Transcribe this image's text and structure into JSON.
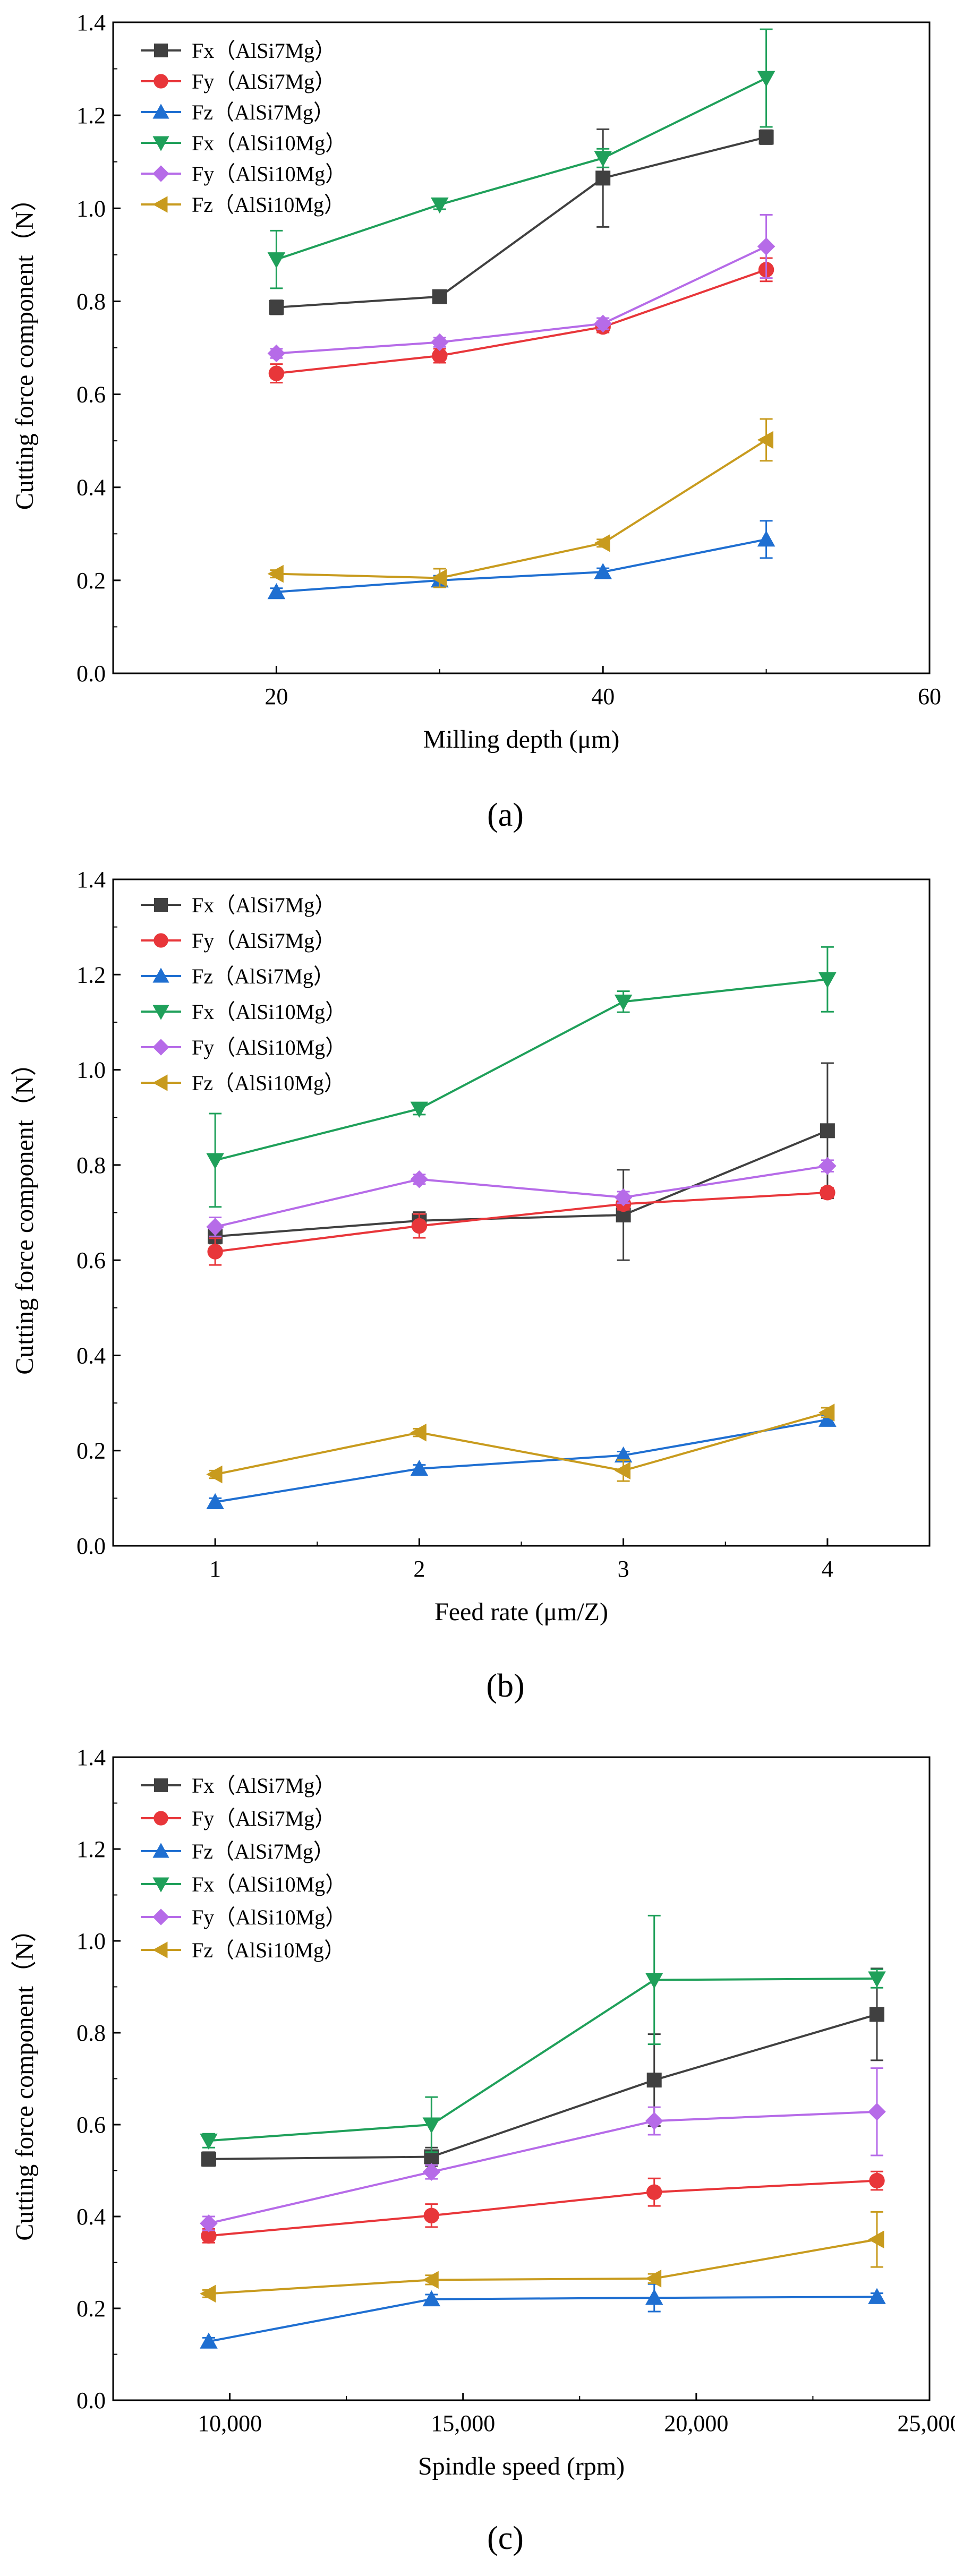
{
  "chart_data": [
    {
      "type": "line",
      "panel_label": "(a)",
      "xlabel": "Milling depth (μm)",
      "ylabel": "Cutting force component（N）",
      "xlim": [
        10,
        60
      ],
      "ylim": [
        0,
        1.4
      ],
      "x_ticks": [
        20,
        40,
        60
      ],
      "x_tick_labels": [
        "20",
        "40",
        "60"
      ],
      "y_ticks": [
        0,
        0.2,
        0.4,
        0.6,
        0.8,
        1.0,
        1.2,
        1.4
      ],
      "y_tick_labels": [
        "0.0",
        "0.2",
        "0.4",
        "0.6",
        "0.8",
        "1.0",
        "1.2",
        "1.4"
      ],
      "x": [
        20,
        30,
        40,
        50
      ],
      "series": [
        {
          "name": "Fx（AlSi7Mg）",
          "color": "#404040",
          "marker": "square",
          "values": [
            0.787,
            0.81,
            1.065,
            1.153
          ],
          "errors": [
            0.015,
            0.01,
            0.105,
            0.015
          ]
        },
        {
          "name": "Fy（AlSi7Mg）",
          "color": "#e8363a",
          "marker": "circle",
          "values": [
            0.645,
            0.683,
            0.745,
            0.868
          ],
          "errors": [
            0.02,
            0.015,
            0.012,
            0.025
          ]
        },
        {
          "name": "Fz（AlSi7Mg）",
          "color": "#1f6fd1",
          "marker": "triangle-up",
          "values": [
            0.175,
            0.2,
            0.218,
            0.288
          ],
          "errors": [
            0.008,
            0.01,
            0.008,
            0.04
          ]
        },
        {
          "name": "Fx（AlSi10Mg）",
          "color": "#1fa05a",
          "marker": "triangle-down",
          "values": [
            0.89,
            1.008,
            1.108,
            1.28
          ],
          "errors": [
            0.062,
            0.01,
            0.02,
            0.105
          ]
        },
        {
          "name": "Fy（AlSi10Mg）",
          "color": "#b66be8",
          "marker": "diamond",
          "values": [
            0.688,
            0.712,
            0.752,
            0.918
          ],
          "errors": [
            0.01,
            0.01,
            0.012,
            0.068
          ]
        },
        {
          "name": "Fz（AlSi10Mg）",
          "color": "#c89b1e",
          "marker": "triangle-left",
          "values": [
            0.214,
            0.205,
            0.28,
            0.502
          ],
          "errors": [
            0.008,
            0.02,
            0.008,
            0.045
          ]
        }
      ]
    },
    {
      "type": "line",
      "panel_label": "(b)",
      "xlabel": "Feed rate (μm/Z)",
      "ylabel": "Cutting force component（N）",
      "xlim": [
        0.5,
        4.5
      ],
      "ylim": [
        0,
        1.4
      ],
      "x_ticks": [
        1,
        2,
        3,
        4
      ],
      "x_tick_labels": [
        "1",
        "2",
        "3",
        "4"
      ],
      "y_ticks": [
        0,
        0.2,
        0.4,
        0.6,
        0.8,
        1.0,
        1.2,
        1.4
      ],
      "y_tick_labels": [
        "0.0",
        "0.2",
        "0.4",
        "0.6",
        "0.8",
        "1.0",
        "1.2",
        "1.4"
      ],
      "x": [
        1,
        2,
        3,
        4
      ],
      "series": [
        {
          "name": "Fx（AlSi7Mg）",
          "color": "#404040",
          "marker": "square",
          "values": [
            0.65,
            0.683,
            0.695,
            0.872
          ],
          "errors": [
            0.015,
            0.018,
            0.095,
            0.142
          ]
        },
        {
          "name": "Fy（AlSi7Mg）",
          "color": "#e8363a",
          "marker": "circle",
          "values": [
            0.618,
            0.672,
            0.718,
            0.742
          ],
          "errors": [
            0.028,
            0.025,
            0.012,
            0.01
          ]
        },
        {
          "name": "Fz（AlSi7Mg）",
          "color": "#1f6fd1",
          "marker": "triangle-up",
          "values": [
            0.092,
            0.162,
            0.19,
            0.265
          ],
          "errors": [
            0.008,
            0.008,
            0.008,
            0.01
          ]
        },
        {
          "name": "Fx（AlSi10Mg）",
          "color": "#1fa05a",
          "marker": "triangle-down",
          "values": [
            0.81,
            0.918,
            1.143,
            1.19
          ],
          "errors": [
            0.098,
            0.012,
            0.022,
            0.068
          ]
        },
        {
          "name": "Fy（AlSi10Mg）",
          "color": "#b66be8",
          "marker": "diamond",
          "values": [
            0.67,
            0.77,
            0.732,
            0.798
          ],
          "errors": [
            0.02,
            0.01,
            0.012,
            0.012
          ]
        },
        {
          "name": "Fz（AlSi10Mg）",
          "color": "#c89b1e",
          "marker": "triangle-left",
          "values": [
            0.15,
            0.238,
            0.158,
            0.28
          ],
          "errors": [
            0.008,
            0.008,
            0.022,
            0.01
          ]
        }
      ]
    },
    {
      "type": "line",
      "panel_label": "(c)",
      "xlabel": "Spindle speed (rpm)",
      "ylabel": "Cutting force component（N）",
      "xlim": [
        7500,
        25000
      ],
      "ylim": [
        0,
        1.4
      ],
      "x_ticks": [
        10000,
        15000,
        20000,
        25000
      ],
      "x_tick_labels": [
        "10,000",
        "15,000",
        "20,000",
        "25,000"
      ],
      "y_ticks": [
        0,
        0.2,
        0.4,
        0.6,
        0.8,
        1.0,
        1.2,
        1.4
      ],
      "y_tick_labels": [
        "0.0",
        "0.2",
        "0.4",
        "0.6",
        "0.8",
        "1.0",
        "1.2",
        "1.4"
      ],
      "x": [
        9549,
        14324,
        19099,
        23873
      ],
      "series": [
        {
          "name": "Fx（AlSi7Mg）",
          "color": "#404040",
          "marker": "square",
          "values": [
            0.525,
            0.53,
            0.697,
            0.84
          ],
          "errors": [
            0.015,
            0.02,
            0.1,
            0.1
          ]
        },
        {
          "name": "Fy（AlSi7Mg）",
          "color": "#e8363a",
          "marker": "circle",
          "values": [
            0.358,
            0.402,
            0.453,
            0.478
          ],
          "errors": [
            0.015,
            0.025,
            0.03,
            0.02
          ]
        },
        {
          "name": "Fz（AlSi7Mg）",
          "color": "#1f6fd1",
          "marker": "triangle-up",
          "values": [
            0.128,
            0.22,
            0.223,
            0.225
          ],
          "errors": [
            0.008,
            0.01,
            0.03,
            0.008
          ]
        },
        {
          "name": "Fx（AlSi10Mg）",
          "color": "#1fa05a",
          "marker": "triangle-down",
          "values": [
            0.565,
            0.6,
            0.915,
            0.918
          ],
          "errors": [
            0.015,
            0.06,
            0.14,
            0.02
          ]
        },
        {
          "name": "Fy（AlSi10Mg）",
          "color": "#b66be8",
          "marker": "diamond",
          "values": [
            0.385,
            0.497,
            0.608,
            0.628
          ],
          "errors": [
            0.015,
            0.015,
            0.03,
            0.095
          ]
        },
        {
          "name": "Fz（AlSi10Mg）",
          "color": "#c89b1e",
          "marker": "triangle-left",
          "values": [
            0.232,
            0.262,
            0.265,
            0.35
          ],
          "errors": [
            0.008,
            0.01,
            0.01,
            0.06
          ]
        }
      ]
    }
  ]
}
